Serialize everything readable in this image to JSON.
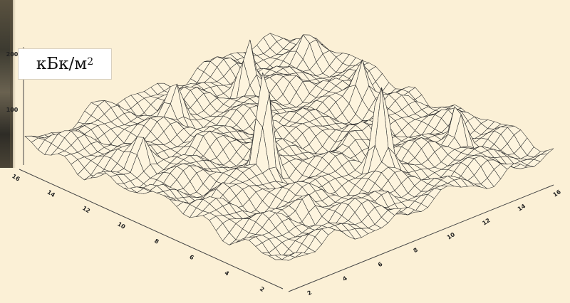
{
  "unit_label": {
    "base": "кБк/м",
    "exponent": "2"
  },
  "chart_data": {
    "type": "surface",
    "title": "",
    "zlabel": "кБк/м2",
    "z_ticks": [
      "100",
      "200"
    ],
    "x_ticks": [
      "2",
      "4",
      "6",
      "8",
      "10",
      "12",
      "14",
      "16"
    ],
    "y_ticks": [
      "2",
      "4",
      "6",
      "8",
      "10",
      "12",
      "14",
      "16"
    ],
    "xlim": [
      1,
      16
    ],
    "ylim": [
      1,
      16
    ],
    "zlim": [
      0,
      250
    ],
    "grid_size": 40,
    "peaks": [
      {
        "x": 6.2,
        "y": 7.6,
        "z": 250
      },
      {
        "x": 9.7,
        "y": 4.5,
        "z": 210
      },
      {
        "x": 11.0,
        "y": 13.4,
        "z": 150
      },
      {
        "x": 13.8,
        "y": 4.2,
        "z": 140
      },
      {
        "x": 13.8,
        "y": 9.7,
        "z": 120
      },
      {
        "x": 7.0,
        "y": 13.5,
        "z": 110
      },
      {
        "x": 2.8,
        "y": 11.2,
        "z": 100
      },
      {
        "x": 9.0,
        "y": 10.0,
        "z": 80
      },
      {
        "x": 5.0,
        "y": 4.0,
        "z": 70
      },
      {
        "x": 3.5,
        "y": 7.5,
        "z": 60
      },
      {
        "x": 10.5,
        "y": 7.0,
        "z": 70
      },
      {
        "x": 12.5,
        "y": 12.0,
        "z": 60
      },
      {
        "x": 6.0,
        "y": 11.0,
        "z": 60
      },
      {
        "x": 8.0,
        "y": 2.5,
        "z": 60
      },
      {
        "x": 15.0,
        "y": 14.0,
        "z": 70
      }
    ],
    "base_level": 45
  }
}
